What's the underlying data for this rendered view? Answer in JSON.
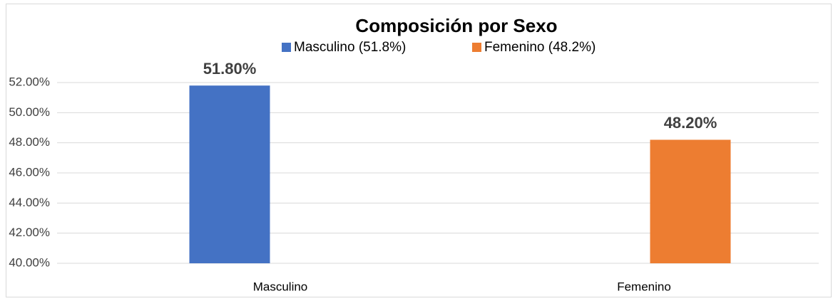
{
  "chart_data": {
    "type": "bar",
    "title": "Composición por Sexo",
    "categories": [
      "Masculino",
      "Femenino"
    ],
    "series": [
      {
        "name": "Masculino (51.8%)",
        "color": "#4472c4",
        "values": [
          51.8,
          null
        ],
        "value_labels": [
          "51.80%",
          null
        ]
      },
      {
        "name": "Femenino (48.2%)",
        "color": "#ed7d31",
        "values": [
          null,
          48.2
        ],
        "value_labels": [
          null,
          "48.20%"
        ]
      }
    ],
    "ylim": [
      40,
      52
    ],
    "yticks": [
      {
        "value": 40,
        "label": "40.00%"
      },
      {
        "value": 42,
        "label": "42.00%"
      },
      {
        "value": 44,
        "label": "44.00%"
      },
      {
        "value": 46,
        "label": "46.00%"
      },
      {
        "value": 48,
        "label": "48.00%"
      },
      {
        "value": 50,
        "label": "50.00%"
      },
      {
        "value": 52,
        "label": "52.00%"
      }
    ],
    "grid": true,
    "legend": "top"
  }
}
